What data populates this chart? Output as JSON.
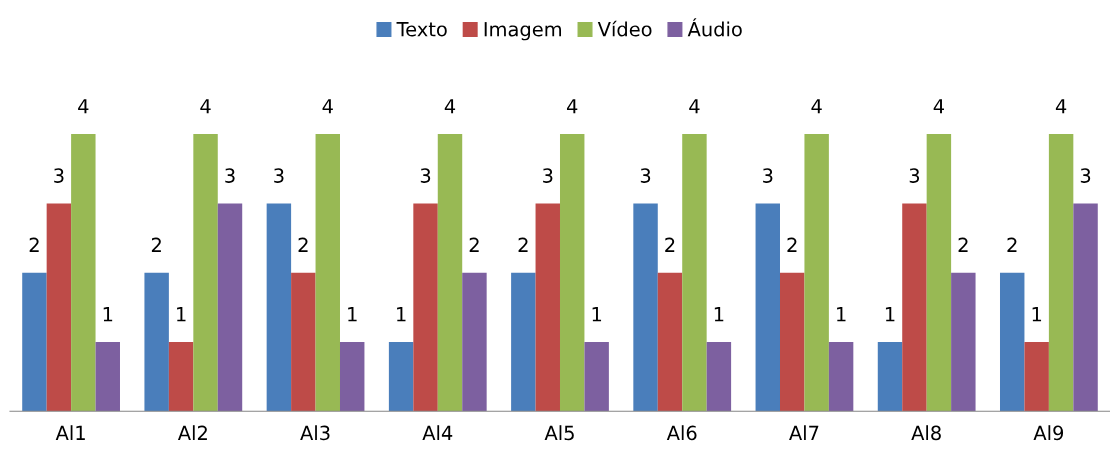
{
  "chart_data": {
    "type": "bar",
    "categories": [
      "Al1",
      "Al2",
      "Al3",
      "Al4",
      "Al5",
      "Al6",
      "Al7",
      "Al8",
      "Al9"
    ],
    "series": [
      {
        "name": "Texto",
        "color": "#4a7ebb",
        "values": [
          2,
          2,
          3,
          1,
          2,
          3,
          3,
          1,
          2
        ]
      },
      {
        "name": "Imagem",
        "color": "#be4b48",
        "values": [
          3,
          1,
          2,
          3,
          3,
          2,
          2,
          3,
          1
        ]
      },
      {
        "name": "Vídeo",
        "color": "#98b954",
        "values": [
          4,
          4,
          4,
          4,
          4,
          4,
          4,
          4,
          4
        ]
      },
      {
        "name": "Áudio",
        "color": "#7d60a0",
        "values": [
          1,
          3,
          1,
          2,
          1,
          1,
          1,
          2,
          3
        ]
      }
    ],
    "data_labels": true,
    "legend": "top",
    "grid": false,
    "tick_labels": "x"
  }
}
